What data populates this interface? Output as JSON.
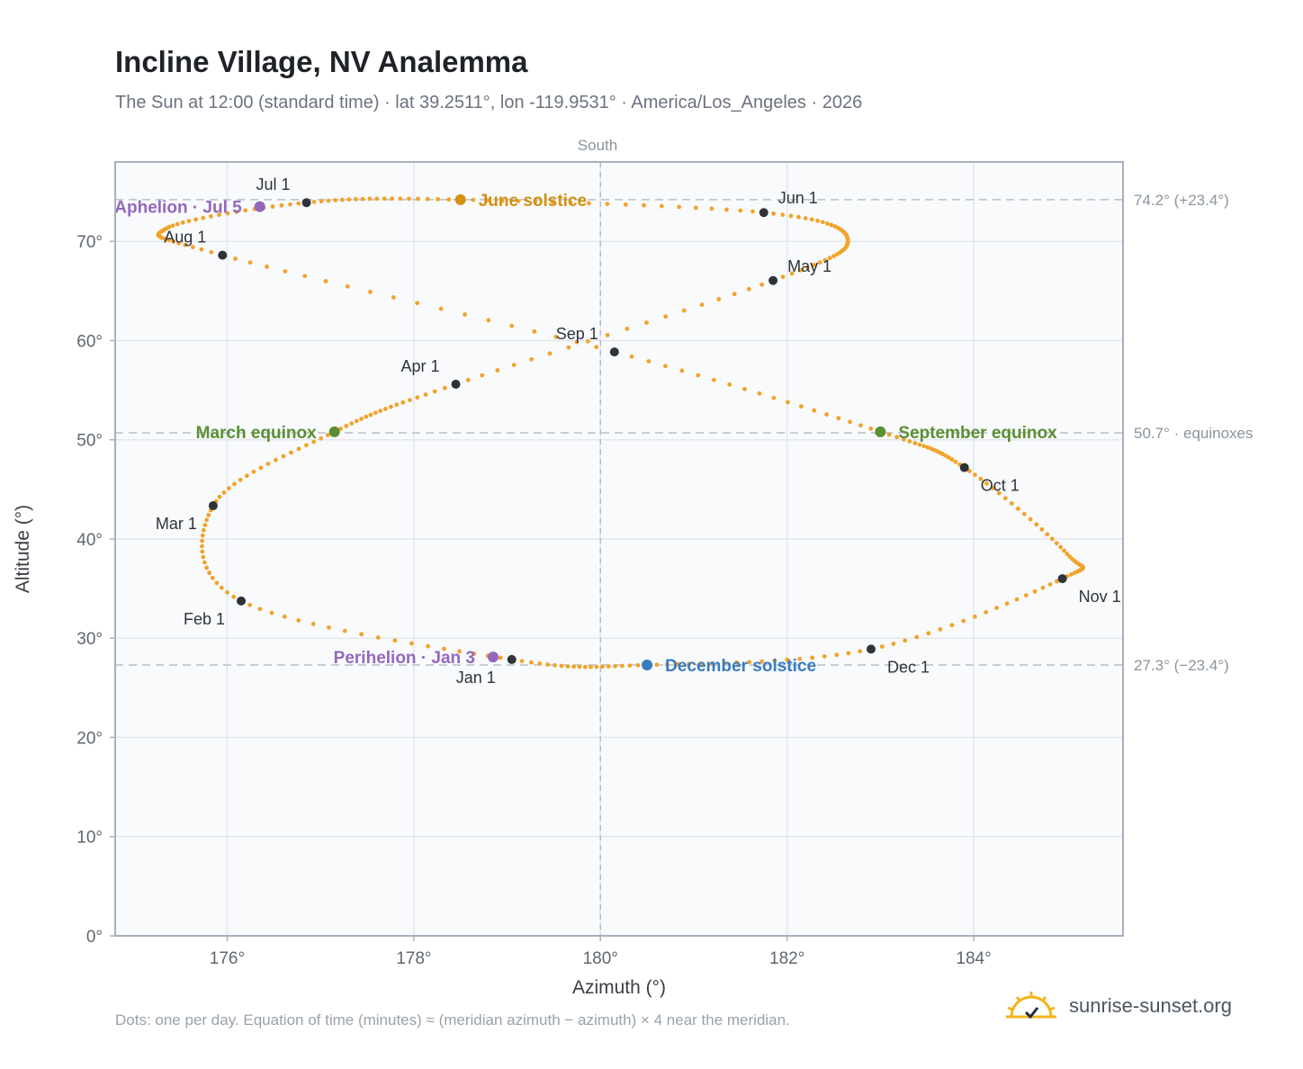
{
  "page": {
    "title": "Incline Village, NV Analemma",
    "subtitle": "The Sun at 12:00 (standard time) · lat 39.2511°, lon -119.9531° · America/Los_Angeles · 2026",
    "footnote": "Dots: one per day. Equation of time (minutes) ≈ (meridian azimuth − azimuth) × 4 near the meridian.",
    "brand": "sunrise-sunset.org",
    "brand_icon": "sun-check-icon"
  },
  "colors": {
    "curve": "#f2a32a",
    "month_marker": "#2f3338",
    "solstice_june": "#d4900e",
    "solstice_december": "#3a7bc0",
    "equinox": "#5b8f32",
    "apsis": "#9467bd",
    "reference_line": "#b8c0c8",
    "meridian_line": "#b3bcc4",
    "plot_background": "#f8fafc",
    "grid": "#e3e8ee",
    "frame": "#a6b0bc"
  },
  "chart_data": {
    "type": "scatter",
    "title": "Incline Village, NV Analemma",
    "xlabel": "Azimuth (°)",
    "ylabel": "Altitude (°)",
    "xlim": [
      174.8,
      185.6
    ],
    "ylim": [
      0,
      78
    ],
    "x_ticks": [
      176,
      178,
      180,
      182,
      184
    ],
    "x_tick_labels": [
      "176°",
      "178°",
      "180°",
      "182°",
      "184°"
    ],
    "y_ticks": [
      0,
      10,
      20,
      30,
      40,
      50,
      60,
      70
    ],
    "y_tick_labels": [
      "0°",
      "10°",
      "20°",
      "30°",
      "40°",
      "50°",
      "60°",
      "70°"
    ],
    "grid": true,
    "meridian": {
      "azimuth": 180,
      "label": "South"
    },
    "reference_lines": [
      {
        "altitude": 74.2,
        "label": "74.2° (+23.4°)"
      },
      {
        "altitude": 50.7,
        "label": "50.7° · equinoxes"
      },
      {
        "altitude": 27.3,
        "label": "27.3° (−23.4°)"
      }
    ],
    "curve_control_points": [
      {
        "x": 179.05,
        "y": 27.85
      },
      {
        "x": 176.15,
        "y": 33.75
      },
      {
        "x": 175.85,
        "y": 43.35
      },
      {
        "x": 177.15,
        "y": 50.8
      },
      {
        "x": 178.45,
        "y": 55.6
      },
      {
        "x": 181.85,
        "y": 66.05
      },
      {
        "x": 182.65,
        "y": 70.2
      },
      {
        "x": 181.75,
        "y": 72.9
      },
      {
        "x": 178.5,
        "y": 74.2
      },
      {
        "x": 176.85,
        "y": 73.9
      },
      {
        "x": 175.35,
        "y": 71.3
      },
      {
        "x": 175.95,
        "y": 68.6
      },
      {
        "x": 180.15,
        "y": 58.85
      },
      {
        "x": 183.0,
        "y": 50.8
      },
      {
        "x": 183.9,
        "y": 47.2
      },
      {
        "x": 185.0,
        "y": 38.5
      },
      {
        "x": 184.95,
        "y": 36.0
      },
      {
        "x": 182.9,
        "y": 28.9
      },
      {
        "x": 180.5,
        "y": 27.3
      },
      {
        "x": 179.05,
        "y": 27.85
      }
    ],
    "month_markers": [
      {
        "label": "Jan 1",
        "x": 179.05,
        "y": 27.85,
        "label_pos": "below-left"
      },
      {
        "label": "Feb 1",
        "x": 176.15,
        "y": 33.75,
        "label_pos": "below-left"
      },
      {
        "label": "Mar 1",
        "x": 175.85,
        "y": 43.35,
        "label_pos": "below-left"
      },
      {
        "label": "Apr 1",
        "x": 178.45,
        "y": 55.6,
        "label_pos": "above-left"
      },
      {
        "label": "May 1",
        "x": 181.85,
        "y": 66.05,
        "label_pos": "above-right"
      },
      {
        "label": "Jun 1",
        "x": 181.75,
        "y": 72.9,
        "label_pos": "above-right"
      },
      {
        "label": "Jul 1",
        "x": 176.85,
        "y": 73.9,
        "label_pos": "above-left"
      },
      {
        "label": "Aug 1",
        "x": 175.95,
        "y": 68.6,
        "label_pos": "above-left"
      },
      {
        "label": "Sep 1",
        "x": 180.15,
        "y": 58.85,
        "label_pos": "above-left"
      },
      {
        "label": "Oct 1",
        "x": 183.9,
        "y": 47.2,
        "label_pos": "below-right"
      },
      {
        "label": "Nov 1",
        "x": 184.95,
        "y": 36.0,
        "label_pos": "below-right"
      },
      {
        "label": "Dec 1",
        "x": 182.9,
        "y": 28.9,
        "label_pos": "below-right"
      }
    ],
    "events": [
      {
        "label": "June solstice",
        "x": 178.5,
        "y": 74.2,
        "kind": "solstice_june",
        "label_pos": "right"
      },
      {
        "label": "December solstice",
        "x": 180.5,
        "y": 27.3,
        "kind": "solstice_december",
        "label_pos": "right"
      },
      {
        "label": "March equinox",
        "x": 177.15,
        "y": 50.8,
        "kind": "equinox",
        "label_pos": "left"
      },
      {
        "label": "September equinox",
        "x": 183.0,
        "y": 50.8,
        "kind": "equinox",
        "label_pos": "right"
      },
      {
        "label": "Aphelion · Jul 5",
        "x": 176.35,
        "y": 73.5,
        "kind": "apsis",
        "label_pos": "left"
      },
      {
        "label": "Perihelion · Jan 3",
        "x": 178.85,
        "y": 28.1,
        "kind": "apsis",
        "label_pos": "left"
      }
    ]
  }
}
